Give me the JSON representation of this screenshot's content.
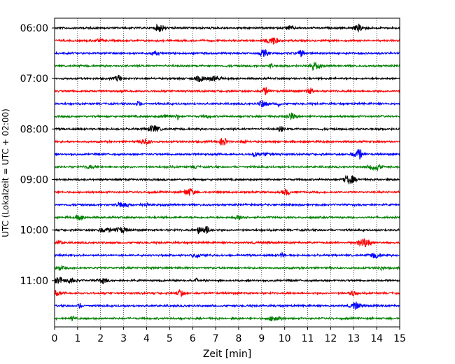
{
  "chart_data": {
    "type": "line",
    "title": "",
    "xlabel": "Zeit  [min]",
    "ylabel": "UTC (Lokalzeit = UTC + 02:00)",
    "xlim": [
      0,
      15
    ],
    "x_ticks": [
      "0",
      "1",
      "2",
      "3",
      "4",
      "5",
      "6",
      "7",
      "8",
      "9",
      "10",
      "11",
      "12",
      "13",
      "14",
      "15"
    ],
    "y_tick_labels": [
      "06:00",
      "07:00",
      "08:00",
      "09:00",
      "10:00",
      "11:00"
    ],
    "grid": "vertical dotted",
    "trace_interval_minutes": 15,
    "series": [
      {
        "start": "06:00",
        "color": "#000000",
        "amplitude": 0.2
      },
      {
        "start": "06:15",
        "color": "#ff0000",
        "amplitude": 0.2
      },
      {
        "start": "06:30",
        "color": "#0000ff",
        "amplitude": 0.2
      },
      {
        "start": "06:45",
        "color": "#008000",
        "amplitude": 0.2
      },
      {
        "start": "07:00",
        "color": "#000000",
        "amplitude": 0.2
      },
      {
        "start": "07:15",
        "color": "#ff0000",
        "amplitude": 0.2
      },
      {
        "start": "07:30",
        "color": "#0000ff",
        "amplitude": 0.2
      },
      {
        "start": "07:45",
        "color": "#008000",
        "amplitude": 0.2
      },
      {
        "start": "08:00",
        "color": "#000000",
        "amplitude": 0.2
      },
      {
        "start": "08:15",
        "color": "#ff0000",
        "amplitude": 0.2
      },
      {
        "start": "08:30",
        "color": "#0000ff",
        "amplitude": 0.2
      },
      {
        "start": "08:45",
        "color": "#008000",
        "amplitude": 0.2
      },
      {
        "start": "09:00",
        "color": "#000000",
        "amplitude": 0.2
      },
      {
        "start": "09:15",
        "color": "#ff0000",
        "amplitude": 0.2
      },
      {
        "start": "09:30",
        "color": "#0000ff",
        "amplitude": 0.2
      },
      {
        "start": "09:45",
        "color": "#008000",
        "amplitude": 0.2
      },
      {
        "start": "10:00",
        "color": "#000000",
        "amplitude": 0.2
      },
      {
        "start": "10:15",
        "color": "#ff0000",
        "amplitude": 0.2
      },
      {
        "start": "10:30",
        "color": "#0000ff",
        "amplitude": 0.2
      },
      {
        "start": "10:45",
        "color": "#008000",
        "amplitude": 0.2
      },
      {
        "start": "11:00",
        "color": "#000000",
        "amplitude": 0.2
      },
      {
        "start": "11:15",
        "color": "#ff0000",
        "amplitude": 0.2
      },
      {
        "start": "11:30",
        "color": "#0000ff",
        "amplitude": 0.2
      },
      {
        "start": "11:45",
        "color": "#008000",
        "amplitude": 0.2
      }
    ]
  }
}
